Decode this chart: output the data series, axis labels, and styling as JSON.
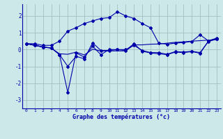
{
  "xlabel": "Graphe des températures (°c)",
  "background_color": "#cce8e8",
  "grid_color": "#99bbbb",
  "line_color": "#0000aa",
  "x": [
    0,
    1,
    2,
    3,
    4,
    5,
    6,
    7,
    8,
    9,
    10,
    11,
    12,
    13,
    14,
    15,
    16,
    17,
    18,
    19,
    20,
    21,
    22,
    23
  ],
  "xlim": [
    -0.5,
    23.5
  ],
  "ylim": [
    -3.5,
    2.7
  ],
  "yticks": [
    -3,
    -2,
    -1,
    0,
    1,
    2
  ],
  "xticks": [
    0,
    1,
    2,
    3,
    4,
    5,
    6,
    7,
    8,
    9,
    10,
    11,
    12,
    13,
    14,
    15,
    16,
    17,
    18,
    19,
    20,
    21,
    22,
    23
  ],
  "line1_x": [
    0,
    1,
    2,
    3,
    4,
    5,
    6,
    7,
    8,
    9,
    10,
    11,
    12,
    13,
    14,
    15,
    16,
    17,
    18,
    19,
    20,
    21,
    22,
    23
  ],
  "line1_y": [
    0.35,
    0.25,
    0.15,
    0.1,
    -0.3,
    -1.0,
    -0.4,
    -0.55,
    0.4,
    -0.05,
    -0.05,
    0.0,
    -0.05,
    0.35,
    -0.1,
    -0.2,
    -0.25,
    -0.3,
    -0.15,
    -0.18,
    -0.12,
    -0.22,
    0.5,
    0.65
  ],
  "line2_x": [
    0,
    1,
    2,
    3,
    4,
    5,
    6,
    7,
    8,
    9,
    10,
    11,
    12,
    13,
    14,
    15,
    16,
    17,
    18,
    19,
    20,
    21,
    22,
    23
  ],
  "line2_y": [
    0.35,
    0.25,
    0.15,
    0.1,
    -0.3,
    -2.55,
    -0.2,
    -0.45,
    0.2,
    -0.3,
    0.0,
    0.0,
    0.0,
    0.25,
    -0.05,
    -0.18,
    -0.18,
    -0.28,
    -0.12,
    -0.15,
    -0.1,
    -0.18,
    0.48,
    0.62
  ],
  "line3_x": [
    0,
    1,
    2,
    3,
    4,
    5,
    6,
    7,
    8,
    9,
    10,
    11,
    12,
    13,
    14,
    15,
    16,
    17,
    18,
    19,
    20,
    21,
    22,
    23
  ],
  "line3_y": [
    0.35,
    0.35,
    0.25,
    0.25,
    0.5,
    1.1,
    1.3,
    1.55,
    1.7,
    1.85,
    1.9,
    2.25,
    2.0,
    1.85,
    1.55,
    1.3,
    0.38,
    0.32,
    0.38,
    0.42,
    0.48,
    0.88,
    0.52,
    0.68
  ],
  "line4_x": [
    0,
    1,
    2,
    3,
    4,
    5,
    6,
    7,
    8,
    9,
    10,
    11,
    12,
    13,
    14,
    15,
    16,
    17,
    18,
    19,
    20,
    21,
    22,
    23
  ],
  "line4_y": [
    0.35,
    0.28,
    0.15,
    0.08,
    -0.25,
    -0.28,
    -0.15,
    -0.32,
    0.02,
    -0.08,
    -0.08,
    -0.08,
    -0.08,
    0.28,
    0.28,
    0.32,
    0.33,
    0.38,
    0.43,
    0.46,
    0.5,
    0.53,
    0.56,
    0.6
  ]
}
